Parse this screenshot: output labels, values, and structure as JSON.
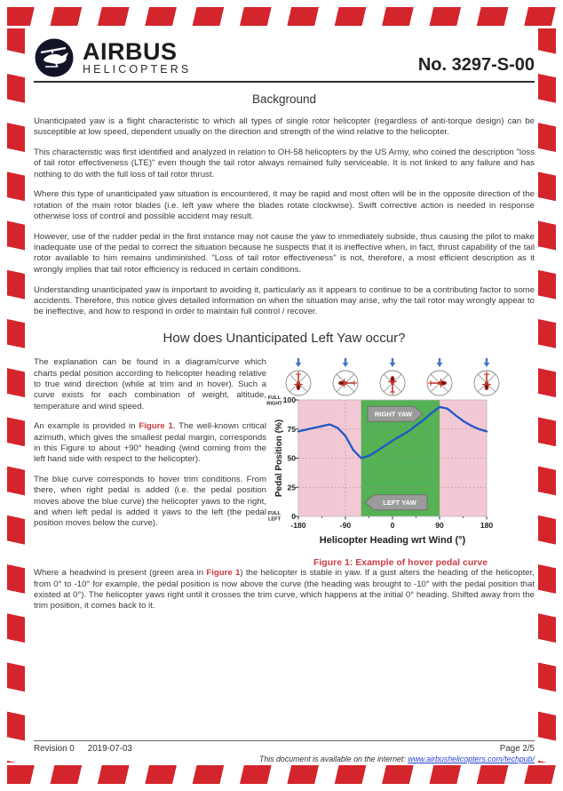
{
  "header": {
    "brand": "AIRBUS",
    "brand_sub": "HELICOPTERS",
    "doc_number": "No. 3297-S-00"
  },
  "icons": {
    "logo": "airbus-helicopters-logo",
    "wind_arrow": "wind-arrow-down",
    "heading_icons": "helicopter-top-view-in-rotor-circle"
  },
  "sections": {
    "background_title": "Background",
    "how_title": "How does Unanticipated Left Yaw occur?"
  },
  "paragraphs": [
    "Unanticipated yaw is a flight characteristic to which all types of single rotor helicopter (regardless of anti-torque design) can be susceptible at low speed, dependent usually on the direction and strength of the wind relative to the helicopter.",
    "This characteristic was first identified and analyzed in relation to OH-58 helicopters by the US Army, who coined the description \"loss of tail rotor effectiveness (LTE)\" even though the tail rotor always remained fully serviceable. It is not linked to any failure and has nothing to do with the full loss of tail rotor thrust.",
    "Where this type of unanticipated yaw situation is encountered, it may be rapid and most often will be in the opposite direction of the rotation of the main rotor blades (i.e. left yaw where the blades rotate clockwise).  Swift corrective action is needed in response otherwise loss of control and possible accident may result.",
    "However, use of the rudder pedal in the first instance may not cause the yaw to immediately subside, thus causing the pilot to make inadequate use of the pedal to correct the situation because he suspects that it is ineffective when, in fact, thrust capability of the tail rotor available to him remains undiminished.  \"Loss of tail rotor effectiveness\" is not, therefore, a most efficient description as it wrongly implies that tail rotor efficiency is reduced in certain conditions.",
    "Understanding unanticipated yaw is important to avoiding it, particularly as it appears to continue to be a contributing factor to some accidents.  Therefore, this notice gives detailed information on when the situation may arise, why the tail rotor may wrongly appear to be ineffective, and how to respond in order to maintain full control / recover."
  ],
  "left_column": {
    "para1": "The explanation can be found in a diagram/curve which charts pedal position according to helicopter heading relative to true wind direction (while at trim and in hover). Such a curve exists for each combination of weight, altitude, temperature and wind speed.",
    "para2_pre": "An example is provided in ",
    "figure_ref": "Figure 1",
    "para2_post": ". The well-known critical azimuth, which gives the smallest pedal margin, corresponds in this Figure to about +90° heading (wind coming from the left hand side with respect to the helicopter).",
    "para3": "The blue curve corresponds to hover trim conditions. From there, when right pedal is added (i.e. the pedal position moves above the blue curve) the helicopter yaws to the right, and when left pedal is added it yaws to the left (the pedal position moves below the curve)."
  },
  "bottom_paragraph": {
    "pre": "Where a headwind is present (green area in ",
    "figure_ref": "Figure 1",
    "post": ") the helicopter is stable in yaw. If a gust alters the heading of the helicopter, from 0° to -10° for example, the pedal position is now above the curve (the heading was brought to -10° with the pedal position that existed at 0°). The helicopter yaws right until it crosses the trim curve, which happens at the initial 0° heading. Shifted away from the trim position, it comes back to it."
  },
  "chart_data": {
    "type": "line",
    "caption": "Figure 1: Example of hover pedal curve",
    "xlabel": "Helicopter Heading wrt Wind (°)",
    "ylabel": "Pedal Position (%)",
    "xlim": [
      -180,
      180
    ],
    "ylim": [
      0,
      100
    ],
    "x_ticks": [
      -180,
      -90,
      0,
      90,
      180
    ],
    "x_minor_ticks": [
      -135,
      -45,
      45,
      135
    ],
    "y_ticks": [
      0,
      25,
      50,
      75,
      100
    ],
    "y_end_labels": {
      "top": [
        "FULL",
        "RIGHT"
      ],
      "bottom": [
        "FULL",
        "LEFT"
      ]
    },
    "grid": true,
    "series": [
      {
        "name": "hover trim pedal curve",
        "color": "#1d58c4",
        "x": [
          -180,
          -165,
          -150,
          -135,
          -120,
          -105,
          -90,
          -75,
          -60,
          -45,
          -30,
          -15,
          0,
          15,
          30,
          45,
          60,
          75,
          90,
          105,
          120,
          135,
          150,
          165,
          180
        ],
        "y": [
          73,
          74.5,
          76,
          77.5,
          79,
          76,
          69,
          57,
          50,
          52,
          56,
          60.5,
          65,
          69,
          73,
          78,
          83,
          89,
          94,
          92.5,
          87,
          82,
          78,
          75,
          73
        ]
      }
    ],
    "regions": [
      {
        "label": "background",
        "from": -180,
        "to": 180,
        "color": "#f3c8d5"
      },
      {
        "label": "headwind stable zone",
        "from": -60,
        "to": 90,
        "color": "#54b254"
      }
    ],
    "annotations": [
      {
        "label": "RIGHT YAW",
        "direction": "right",
        "y": 88
      },
      {
        "label": "LEFT YAW",
        "direction": "left",
        "y": 12
      }
    ],
    "wind_icons": {
      "positions": [
        -180,
        -90,
        0,
        90,
        180
      ],
      "rotations": [
        180,
        -90,
        0,
        90,
        180
      ],
      "arrow_color": "#4472c4",
      "heli_color": "#c0392b"
    }
  },
  "footer": {
    "revision": "Revision 0",
    "date": "2019-07-03",
    "page": "Page 2/5",
    "availability_text": "This document is available on the internet: ",
    "url": "www.airbushelicopters.com/techpub/"
  }
}
